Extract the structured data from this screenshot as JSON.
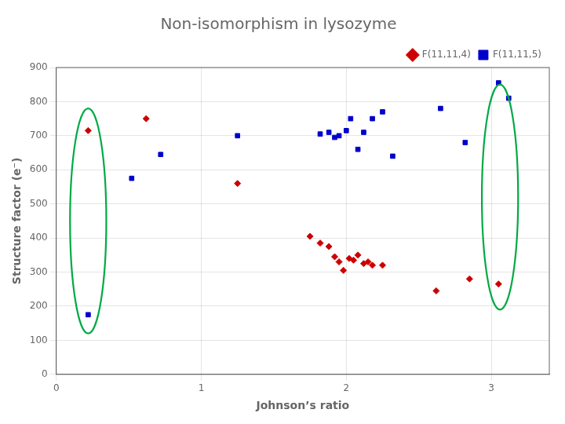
{
  "chart_data": {
    "type": "scatter",
    "title": "Non-isomorphism in lysozyme",
    "xlabel": "Johnson’s ratio",
    "ylabel": "Structure factor (e⁻)",
    "xlim": [
      0,
      3.4
    ],
    "ylim": [
      0,
      900
    ],
    "xticks": [
      0,
      1,
      2,
      3
    ],
    "yticks": [
      0,
      100,
      200,
      300,
      400,
      500,
      600,
      700,
      800,
      900
    ],
    "grid": true,
    "legend": "upper right",
    "series": [
      {
        "name": "F(11,11,4)",
        "color": "#cc0000",
        "marker": "diamond",
        "x": [
          0.22,
          0.62,
          1.25,
          1.75,
          1.82,
          1.88,
          1.92,
          1.95,
          1.98,
          2.02,
          2.05,
          2.08,
          2.12,
          2.15,
          2.18,
          2.25,
          2.62,
          2.85,
          3.05
        ],
        "values": [
          715,
          750,
          560,
          405,
          385,
          375,
          345,
          330,
          305,
          340,
          335,
          350,
          325,
          330,
          320,
          320,
          245,
          280,
          265
        ]
      },
      {
        "name": "F(11,11,5)",
        "color": "#0000cc",
        "marker": "square",
        "x": [
          0.22,
          0.52,
          0.72,
          1.25,
          1.82,
          1.88,
          1.92,
          1.95,
          2.0,
          2.03,
          2.08,
          2.12,
          2.18,
          2.25,
          2.32,
          2.65,
          2.82,
          3.05,
          3.12
        ],
        "values": [
          175,
          575,
          645,
          700,
          705,
          710,
          695,
          700,
          715,
          750,
          660,
          710,
          750,
          770,
          640,
          780,
          680,
          855,
          810
        ]
      }
    ],
    "ellipses": [
      {
        "cx": 0.22,
        "cy": 450,
        "width": 0.25,
        "height": 660,
        "color": "#00aa44"
      },
      {
        "cx": 3.06,
        "cy": 520,
        "width": 0.25,
        "height": 660,
        "color": "#00aa44"
      }
    ]
  }
}
